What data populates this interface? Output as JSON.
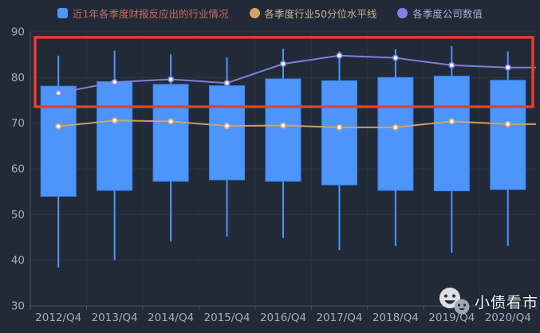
{
  "legend": {
    "items": [
      {
        "label": "近1年各季度财报反应出的行业情况",
        "marker": "square",
        "marker_color": "#4d95fb",
        "text_color": "#c66a5f"
      },
      {
        "label": "各季度行业50分位水平线",
        "marker": "circle",
        "marker_color": "#d3a467",
        "text_color": "#c8b293"
      },
      {
        "label": "各季度公司数值",
        "marker": "circle",
        "marker_color": "#7f84e3",
        "text_color": "#a9abda"
      }
    ]
  },
  "watermark": {
    "text": "小债看市",
    "icon": "chat-faces-icon"
  },
  "colors": {
    "background": "#222a37",
    "grid_line": "#2c3547",
    "vertical_grid_line": "#293242",
    "axis_line": "#4a5567",
    "tick_label": "#a3abbd",
    "bar_fill": "#4d95fb",
    "bar_stroke": "#3a85f0",
    "median_line": "#d3a467",
    "company_line": "#7f84e3",
    "annotation_red": "#ec3b30",
    "marker_fill": "#ffffff"
  },
  "chart_data": {
    "type": "candlestick",
    "title": "",
    "categories": [
      "2012/Q4",
      "2013/Q4",
      "2014/Q4",
      "2015/Q4",
      "2016/Q4",
      "2017/Q4",
      "2018/Q4",
      "2019/Q4",
      "2020/Q4"
    ],
    "ylim": [
      30,
      90
    ],
    "ytick_step": 10,
    "grid": true,
    "legend_position": "top",
    "series": [
      {
        "name": "近1年各季度财报反应出的行业情况",
        "type": "candlestick-range",
        "color": "#4d95fb",
        "whisker_max": [
          84.8,
          85.9,
          85.1,
          84.4,
          86.3,
          85.7,
          86.2,
          86.9,
          85.7
        ],
        "box_top": [
          78.1,
          79.1,
          78.5,
          78.2,
          79.7,
          79.3,
          80.0,
          80.3,
          79.4
        ],
        "box_bottom": [
          54.0,
          55.3,
          57.3,
          57.6,
          57.3,
          56.5,
          55.3,
          55.2,
          55.5
        ],
        "whisker_min": [
          38.4,
          40.0,
          44.1,
          45.2,
          44.9,
          42.2,
          43.1,
          41.6,
          43.1
        ]
      },
      {
        "name": "各季度行业50分位水平线",
        "type": "line",
        "color": "#d3a467",
        "values": [
          69.3,
          70.6,
          70.4,
          69.4,
          69.5,
          69.1,
          69.1,
          70.4,
          69.8
        ]
      },
      {
        "name": "各季度公司数值",
        "type": "line",
        "color": "#7f84e3",
        "values": [
          76.6,
          79.0,
          79.6,
          78.8,
          83.0,
          84.8,
          84.3,
          82.7,
          82.2
        ]
      }
    ],
    "annotation": {
      "type": "rect",
      "color": "#ec3b30",
      "x_range": "full-width",
      "y_range": [
        73.6,
        88.8
      ]
    }
  }
}
